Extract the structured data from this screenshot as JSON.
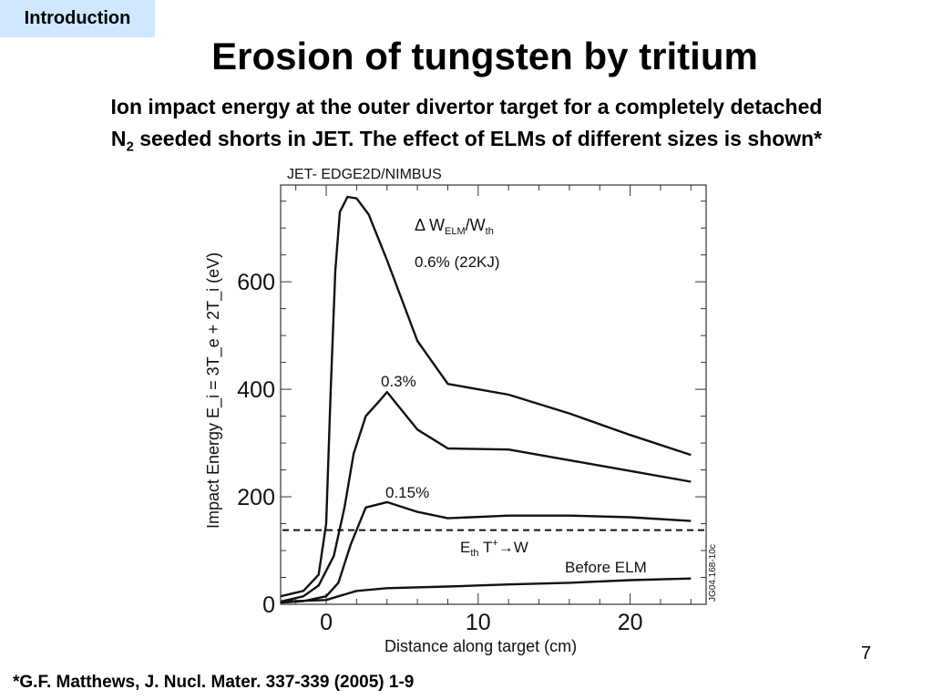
{
  "header": {
    "section": "Introduction",
    "title": "Erosion of tungsten by tritium",
    "subtitle_line1": "Ion impact energy at the outer divertor target for a completely detached",
    "subtitle_line2_prefix": "N",
    "subtitle_line2_sub": "2",
    "subtitle_line2_rest": " seeded shorts in JET. The effect of ELMs of different sizes is shown*"
  },
  "chart_data": {
    "type": "line",
    "title": "JET- EDGE2D/NIMBUS",
    "xlabel": "Distance along target (cm)",
    "ylabel": "Impact Energy E_i = 3T_e + 2T_i (eV)",
    "xlim": [
      -3,
      25
    ],
    "ylim": [
      0,
      780
    ],
    "x_ticks": [
      0,
      10,
      20
    ],
    "y_ticks": [
      0,
      200,
      400,
      600
    ],
    "legend_header": "Δ W_ELM/W_th",
    "figure_code": "JG04.168-10c",
    "series": [
      {
        "name": "0.6% (22KJ)",
        "points": [
          [
            -3,
            15
          ],
          [
            -1.5,
            25
          ],
          [
            -0.5,
            55
          ],
          [
            0,
            150
          ],
          [
            0.3,
            400
          ],
          [
            0.6,
            620
          ],
          [
            0.9,
            730
          ],
          [
            1.4,
            758
          ],
          [
            2,
            755
          ],
          [
            2.8,
            725
          ],
          [
            4,
            640
          ],
          [
            6,
            490
          ],
          [
            8,
            410
          ],
          [
            12,
            390
          ],
          [
            16,
            355
          ],
          [
            20,
            315
          ],
          [
            24,
            278
          ]
        ]
      },
      {
        "name": "0.3%",
        "points": [
          [
            -3,
            5
          ],
          [
            -1.5,
            15
          ],
          [
            -0.5,
            35
          ],
          [
            0.5,
            90
          ],
          [
            1.2,
            180
          ],
          [
            1.8,
            280
          ],
          [
            2.6,
            350
          ],
          [
            3.4,
            375
          ],
          [
            4,
            395
          ],
          [
            6,
            325
          ],
          [
            8,
            290
          ],
          [
            12,
            288
          ],
          [
            16,
            268
          ],
          [
            20,
            248
          ],
          [
            24,
            228
          ]
        ]
      },
      {
        "name": "0.15%",
        "points": [
          [
            -3,
            3
          ],
          [
            -1.5,
            6
          ],
          [
            0,
            15
          ],
          [
            0.8,
            40
          ],
          [
            1.6,
            110
          ],
          [
            2.6,
            180
          ],
          [
            4,
            190
          ],
          [
            6,
            172
          ],
          [
            8,
            160
          ],
          [
            12,
            165
          ],
          [
            16,
            165
          ],
          [
            20,
            162
          ],
          [
            24,
            155
          ]
        ]
      },
      {
        "name": "Before ELM",
        "points": [
          [
            -3,
            5
          ],
          [
            0,
            8
          ],
          [
            0.8,
            15
          ],
          [
            2,
            25
          ],
          [
            4,
            30
          ],
          [
            8,
            33
          ],
          [
            12,
            37
          ],
          [
            16,
            40
          ],
          [
            20,
            45
          ],
          [
            24,
            48
          ]
        ]
      }
    ],
    "threshold": {
      "label_main": "E",
      "label_sub": "th",
      "label_rest": " T",
      "label_sup": "+",
      "label_tail": "W",
      "value": 138
    }
  },
  "page_number": "7",
  "footnote": "*G.F. Matthews, J. Nucl. Mater. 337-339 (2005) 1-9"
}
